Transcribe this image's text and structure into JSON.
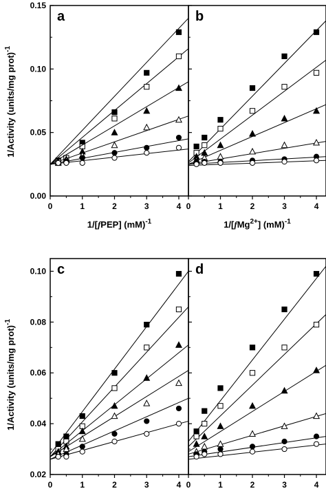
{
  "figure": {
    "ylabel_top": "1/Activity (units/mg prot)",
    "ylabel_top_sup": "-1",
    "ylabel_bottom": "1/Activity (units/mg prot)",
    "ylabel_bottom_sup": "-1"
  },
  "chart_data": [
    {
      "type": "scatter",
      "panel": "a",
      "xlabel_parts": {
        "prefix": "1/[",
        "f": "f",
        "mid": "PEP",
        "sup": "",
        "suffix": "] (mM)",
        "tail_sup": "-1"
      },
      "xlim": [
        0,
        4.3
      ],
      "ylim": [
        0,
        0.15
      ],
      "xticks": [
        0,
        1,
        2,
        3,
        4
      ],
      "yticks": [
        0.0,
        0.05,
        0.1,
        0.15
      ],
      "ytick_labels": [
        "0.00",
        "0.05",
        "0.10",
        "0.15"
      ],
      "series": [
        {
          "marker": "filled-square",
          "x": [
            0.25,
            0.5,
            1,
            2,
            3,
            4
          ],
          "y": [
            0.028,
            0.03,
            0.042,
            0.066,
            0.097,
            0.129
          ],
          "fit_y": [
            0.025,
            0.14
          ]
        },
        {
          "marker": "open-square",
          "x": [
            0.25,
            0.5,
            1,
            2,
            3,
            4
          ],
          "y": [
            0.027,
            0.03,
            0.039,
            0.061,
            0.086,
            0.11
          ],
          "fit_y": [
            0.025,
            0.116
          ]
        },
        {
          "marker": "filled-triangle",
          "x": [
            0.25,
            0.5,
            1,
            2,
            3,
            4
          ],
          "y": [
            0.027,
            0.029,
            0.035,
            0.05,
            0.067,
            0.085
          ],
          "fit_y": [
            0.025,
            0.09
          ]
        },
        {
          "marker": "open-triangle",
          "x": [
            0.25,
            0.5,
            1,
            2,
            3,
            4
          ],
          "y": [
            0.026,
            0.028,
            0.032,
            0.04,
            0.054,
            0.06
          ],
          "fit_y": [
            0.025,
            0.063
          ]
        },
        {
          "marker": "filled-circle",
          "x": [
            0.25,
            0.5,
            1,
            2,
            3,
            4
          ],
          "y": [
            0.026,
            0.027,
            0.03,
            0.034,
            0.038,
            0.046
          ],
          "fit_y": [
            0.025,
            0.045
          ]
        },
        {
          "marker": "open-circle",
          "x": [
            0.25,
            0.5,
            1,
            2,
            3,
            4
          ],
          "y": [
            0.026,
            0.026,
            0.026,
            0.03,
            0.034,
            0.038
          ],
          "fit_y": [
            0.025,
            0.037
          ]
        }
      ]
    },
    {
      "type": "scatter",
      "panel": "b",
      "xlabel_parts": {
        "prefix": "1/[",
        "f": "f",
        "mid": "Mg",
        "sup": "2+",
        "suffix": "] (mM)",
        "tail_sup": "-1"
      },
      "xlim": [
        0,
        4.3
      ],
      "ylim": [
        0,
        0.15
      ],
      "xticks": [
        0,
        1,
        2,
        3,
        4
      ],
      "yticks": [
        0.0,
        0.05,
        0.1,
        0.15
      ],
      "ytick_labels": [
        "",
        "",
        "",
        ""
      ],
      "series": [
        {
          "marker": "filled-square",
          "x": [
            0.25,
            0.5,
            1,
            2,
            3,
            4
          ],
          "y": [
            0.039,
            0.046,
            0.06,
            0.085,
            0.11,
            0.129
          ],
          "fit_y": [
            0.027,
            0.138
          ]
        },
        {
          "marker": "open-square",
          "x": [
            0.25,
            0.5,
            1,
            2,
            3,
            4
          ],
          "y": [
            0.034,
            0.04,
            0.053,
            0.067,
            0.086,
            0.097
          ],
          "fit_y": [
            0.026,
            0.107
          ]
        },
        {
          "marker": "filled-triangle",
          "x": [
            0.25,
            0.5,
            1,
            2,
            3,
            4
          ],
          "y": [
            0.031,
            0.034,
            0.04,
            0.049,
            0.061,
            0.067
          ],
          "fit_y": [
            0.025,
            0.072
          ]
        },
        {
          "marker": "open-triangle",
          "x": [
            0.25,
            0.5,
            1,
            2,
            3,
            4
          ],
          "y": [
            0.028,
            0.03,
            0.031,
            0.035,
            0.04,
            0.042
          ],
          "fit_y": [
            0.025,
            0.043
          ]
        },
        {
          "marker": "filled-circle",
          "x": [
            0.25,
            0.5,
            1,
            2,
            3,
            4
          ],
          "y": [
            0.027,
            0.027,
            0.027,
            0.028,
            0.029,
            0.031
          ],
          "fit_y": [
            0.025,
            0.031
          ]
        },
        {
          "marker": "open-circle",
          "x": [
            0.25,
            0.5,
            1,
            2,
            3,
            4
          ],
          "y": [
            0.025,
            0.026,
            0.026,
            0.026,
            0.027,
            0.028
          ],
          "fit_y": [
            0.024,
            0.028
          ]
        }
      ]
    },
    {
      "type": "scatter",
      "panel": "c",
      "xlabel_parts": {
        "prefix": "1/[",
        "f": "f",
        "mid": "PEP",
        "sup": "",
        "suffix": "] (mM)",
        "tail_sup": "-1"
      },
      "xlim": [
        0,
        4.3
      ],
      "ylim": [
        0.02,
        0.105
      ],
      "xticks": [
        0,
        1,
        2,
        3,
        4
      ],
      "yticks": [
        0.02,
        0.04,
        0.06,
        0.08,
        0.1
      ],
      "ytick_labels": [
        "0.02",
        "0.04",
        "0.06",
        "0.08",
        "0.10"
      ],
      "series": [
        {
          "marker": "filled-square",
          "x": [
            0.25,
            0.5,
            1,
            2,
            3,
            4
          ],
          "y": [
            0.032,
            0.035,
            0.043,
            0.06,
            0.079,
            0.099
          ],
          "fit_y": [
            0.028,
            0.1
          ]
        },
        {
          "marker": "open-square",
          "x": [
            0.25,
            0.5,
            1,
            2,
            3,
            4
          ],
          "y": [
            0.03,
            0.033,
            0.039,
            0.054,
            0.07,
            0.085
          ],
          "fit_y": [
            0.027,
            0.086
          ]
        },
        {
          "marker": "filled-triangle",
          "x": [
            0.25,
            0.5,
            1,
            2,
            3,
            4
          ],
          "y": [
            0.029,
            0.031,
            0.037,
            0.047,
            0.058,
            0.071
          ],
          "fit_y": [
            0.027,
            0.071
          ]
        },
        {
          "marker": "open-triangle",
          "x": [
            0.25,
            0.5,
            1,
            2,
            3,
            4
          ],
          "y": [
            0.028,
            0.03,
            0.034,
            0.043,
            0.048,
            0.056
          ],
          "fit_y": [
            0.027,
            0.061
          ]
        },
        {
          "marker": "filled-circle",
          "x": [
            0.25,
            0.5,
            1,
            2,
            3,
            4
          ],
          "y": [
            0.027,
            0.028,
            0.031,
            0.036,
            0.041,
            0.046
          ],
          "fit_y": [
            0.026,
            0.05
          ]
        },
        {
          "marker": "open-circle",
          "x": [
            0.25,
            0.5,
            1,
            2,
            3,
            4
          ],
          "y": [
            0.027,
            0.027,
            0.029,
            0.033,
            0.036,
            0.04
          ],
          "fit_y": [
            0.026,
            0.041
          ]
        }
      ]
    },
    {
      "type": "scatter",
      "panel": "d",
      "xlabel_parts": {
        "prefix": "1/[",
        "f": "f",
        "mid": "Mg",
        "sup": "2+",
        "suffix": "] (mM)",
        "tail_sup": "-1"
      },
      "xlim": [
        0,
        4.3
      ],
      "ylim": [
        0.02,
        0.105
      ],
      "xticks": [
        0,
        1,
        2,
        3,
        4
      ],
      "yticks": [
        0.02,
        0.04,
        0.06,
        0.08,
        0.1
      ],
      "ytick_labels": [
        "",
        "",
        "",
        "",
        ""
      ],
      "series": [
        {
          "marker": "filled-square",
          "x": [
            0.25,
            0.5,
            1,
            2,
            3,
            4
          ],
          "y": [
            0.037,
            0.045,
            0.054,
            0.07,
            0.085,
            0.099
          ],
          "fit_y": [
            0.033,
            0.102
          ]
        },
        {
          "marker": "open-square",
          "x": [
            0.25,
            0.5,
            1,
            2,
            3,
            4
          ],
          "y": [
            0.035,
            0.04,
            0.047,
            0.06,
            0.07,
            0.079
          ],
          "fit_y": [
            0.031,
            0.083
          ]
        },
        {
          "marker": "filled-triangle",
          "x": [
            0.25,
            0.5,
            1,
            2,
            3,
            4
          ],
          "y": [
            0.032,
            0.035,
            0.039,
            0.047,
            0.053,
            0.061
          ],
          "fit_y": [
            0.029,
            0.063
          ]
        },
        {
          "marker": "open-triangle",
          "x": [
            0.25,
            0.5,
            1,
            2,
            3,
            4
          ],
          "y": [
            0.029,
            0.031,
            0.032,
            0.036,
            0.039,
            0.043
          ],
          "fit_y": [
            0.028,
            0.044
          ]
        },
        {
          "marker": "filled-circle",
          "x": [
            0.25,
            0.5,
            1,
            2,
            3,
            4
          ],
          "y": [
            0.028,
            0.029,
            0.03,
            0.031,
            0.033,
            0.035
          ],
          "fit_y": [
            0.027,
            0.035
          ]
        },
        {
          "marker": "open-circle",
          "x": [
            0.25,
            0.5,
            1,
            2,
            3,
            4
          ],
          "y": [
            0.027,
            0.028,
            0.028,
            0.029,
            0.03,
            0.032
          ],
          "fit_y": [
            0.026,
            0.032
          ]
        }
      ]
    }
  ]
}
